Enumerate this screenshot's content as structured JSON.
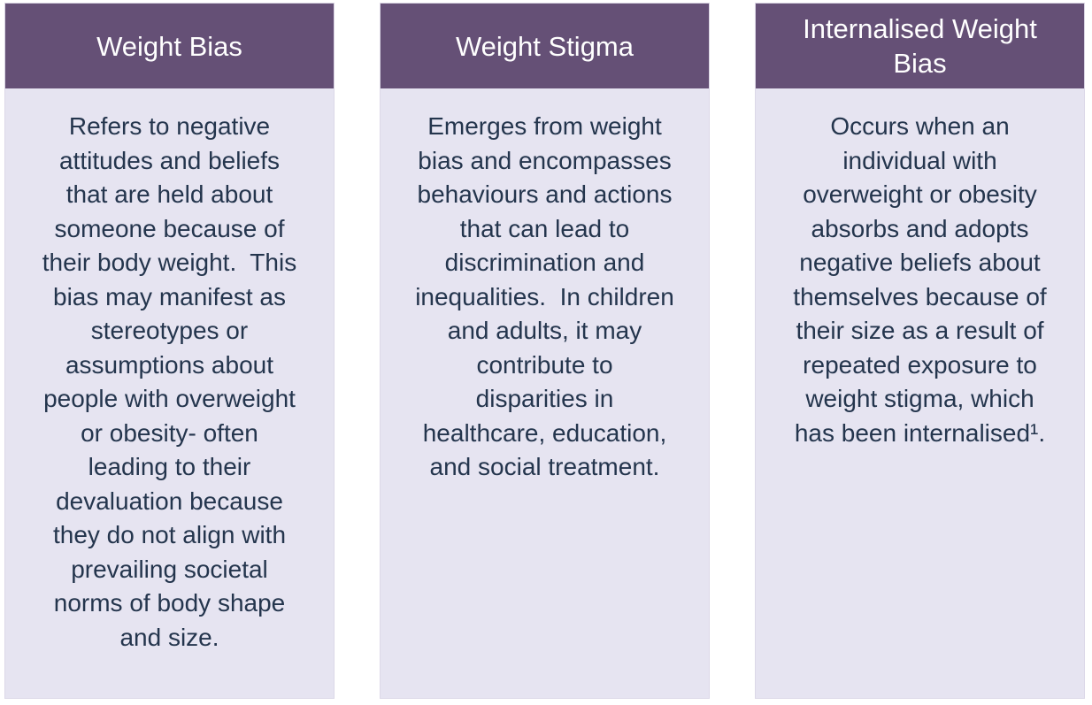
{
  "colors": {
    "header_bg": "#655076",
    "header_text": "#ffffff",
    "body_bg": "#e6e4f1",
    "body_text": "#24354d",
    "page_bg": "#ffffff"
  },
  "cards": [
    {
      "title": "Weight Bias",
      "body": "Refers to negative\nattitudes and beliefs\nthat are held about\nsomeone because of\ntheir body weight.  This\nbias may manifest as\nstereotypes or\nassumptions about\npeople with overweight\nor obesity- often\nleading to their\ndevaluation because\nthey do not align with\nprevailing societal\nnorms of body shape\nand size."
    },
    {
      "title": "Weight Stigma",
      "body": "Emerges from weight\nbias and encompasses\nbehaviours and actions\nthat can lead to\ndiscrimination and\ninequalities.  In children\nand adults, it may\ncontribute to\ndisparities in\nhealthcare, education,\nand social treatment."
    },
    {
      "title": "Internalised Weight Bias",
      "body": "Occurs when an\nindividual with\noverweight or obesity\nabsorbs and adopts\nnegative beliefs about\nthemselves because of\ntheir size as a result of\nrepeated exposure to\nweight stigma, which\nhas been internalised¹."
    }
  ]
}
